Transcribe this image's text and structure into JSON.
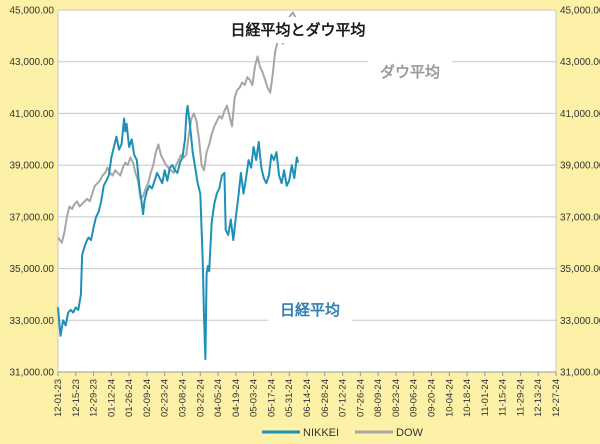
{
  "chart_data": {
    "type": "line",
    "title": "日経平均とダウ平均",
    "annotations": {
      "dow_label": "ダウ平均",
      "nikkei_label": "日経平均"
    },
    "x_ticks": [
      "12-01-23",
      "12-15-23",
      "12-29-23",
      "01-12-24",
      "01-26-24",
      "02-09-24",
      "02-23-24",
      "03-08-24",
      "03-22-24",
      "04-05-24",
      "04-19-24",
      "05-03-24",
      "05-17-24",
      "05-31-24",
      "06-14-24",
      "06-28-24",
      "07-12-24",
      "07-26-24",
      "08-09-24",
      "08-23-24",
      "09-06-24",
      "09-20-24",
      "10-04-24",
      "10-18-24",
      "11-01-24",
      "11-15-24",
      "11-29-24",
      "12-13-24",
      "12-27-24"
    ],
    "ylim": [
      31000,
      45000
    ],
    "y_ticks": [
      "31,000.00",
      "33,000.00",
      "35,000.00",
      "37,000.00",
      "39,000.00",
      "41,000.00",
      "43,000.00",
      "45,000.00"
    ],
    "grid": true,
    "legend_position": "bottom",
    "colors": {
      "background": "#fdf1a8",
      "plot": "#ffffff",
      "grid": "#c8c8c8",
      "nikkei": "#1e90b8",
      "dow": "#a6a6a6",
      "title_text": "#1a1a1a",
      "nikkei_label": "#2f7fb5",
      "dow_label": "#9a9a9a",
      "axis_text": "#333333"
    },
    "series": [
      {
        "name": "NIKKEI",
        "points": [
          [
            0,
            33500
          ],
          [
            2,
            32400
          ],
          [
            4,
            33000
          ],
          [
            6,
            32800
          ],
          [
            8,
            33300
          ],
          [
            10,
            33400
          ],
          [
            12,
            33300
          ],
          [
            14,
            33500
          ],
          [
            16,
            33400
          ],
          [
            18,
            34000
          ],
          [
            19,
            35500
          ],
          [
            20,
            35700
          ],
          [
            22,
            36000
          ],
          [
            24,
            36200
          ],
          [
            26,
            36100
          ],
          [
            28,
            36600
          ],
          [
            30,
            37000
          ],
          [
            32,
            37200
          ],
          [
            34,
            37600
          ],
          [
            36,
            38200
          ],
          [
            38,
            38400
          ],
          [
            40,
            38600
          ],
          [
            42,
            39300
          ],
          [
            44,
            39700
          ],
          [
            46,
            40100
          ],
          [
            48,
            39600
          ],
          [
            50,
            39800
          ],
          [
            52,
            40800
          ],
          [
            53,
            40300
          ],
          [
            54,
            40600
          ],
          [
            56,
            39700
          ],
          [
            58,
            40000
          ],
          [
            60,
            39400
          ],
          [
            62,
            39200
          ],
          [
            64,
            38200
          ],
          [
            66,
            37500
          ],
          [
            67,
            37100
          ],
          [
            68,
            37600
          ],
          [
            70,
            38000
          ],
          [
            72,
            38200
          ],
          [
            74,
            38100
          ],
          [
            76,
            38400
          ],
          [
            78,
            38700
          ],
          [
            80,
            38500
          ],
          [
            82,
            38300
          ],
          [
            84,
            38800
          ],
          [
            86,
            38400
          ],
          [
            88,
            38900
          ],
          [
            90,
            39000
          ],
          [
            92,
            38800
          ],
          [
            94,
            38700
          ],
          [
            96,
            39100
          ],
          [
            98,
            39300
          ],
          [
            100,
            40000
          ],
          [
            101,
            40900
          ],
          [
            102,
            41300
          ],
          [
            104,
            40500
          ],
          [
            106,
            39500
          ],
          [
            108,
            38900
          ],
          [
            110,
            38300
          ],
          [
            112,
            37900
          ],
          [
            113,
            36500
          ],
          [
            114,
            35200
          ],
          [
            115,
            33000
          ],
          [
            116,
            31500
          ],
          [
            117,
            34800
          ],
          [
            118,
            35100
          ],
          [
            119,
            34900
          ],
          [
            121,
            36800
          ],
          [
            123,
            37500
          ],
          [
            125,
            37900
          ],
          [
            127,
            38100
          ],
          [
            129,
            38600
          ],
          [
            131,
            38700
          ],
          [
            132,
            36500
          ],
          [
            134,
            36300
          ],
          [
            136,
            36900
          ],
          [
            138,
            36100
          ],
          [
            140,
            37000
          ],
          [
            142,
            37800
          ],
          [
            144,
            38700
          ],
          [
            146,
            37900
          ],
          [
            148,
            38500
          ],
          [
            150,
            39200
          ],
          [
            152,
            38900
          ],
          [
            154,
            39700
          ],
          [
            156,
            39200
          ],
          [
            158,
            39900
          ],
          [
            160,
            38900
          ],
          [
            162,
            38500
          ],
          [
            164,
            38300
          ],
          [
            166,
            38600
          ],
          [
            168,
            39400
          ],
          [
            170,
            39200
          ],
          [
            172,
            39500
          ],
          [
            174,
            38600
          ],
          [
            176,
            38300
          ],
          [
            178,
            38800
          ],
          [
            180,
            38200
          ],
          [
            182,
            38400
          ],
          [
            184,
            39000
          ],
          [
            186,
            38500
          ],
          [
            188,
            39300
          ],
          [
            189,
            39100
          ]
        ]
      },
      {
        "name": "DOW",
        "points": [
          [
            0,
            36200
          ],
          [
            3,
            36000
          ],
          [
            5,
            36400
          ],
          [
            7,
            37000
          ],
          [
            9,
            37400
          ],
          [
            11,
            37300
          ],
          [
            13,
            37500
          ],
          [
            15,
            37600
          ],
          [
            17,
            37400
          ],
          [
            19,
            37500
          ],
          [
            21,
            37600
          ],
          [
            23,
            37700
          ],
          [
            25,
            37600
          ],
          [
            27,
            37900
          ],
          [
            29,
            38200
          ],
          [
            31,
            38300
          ],
          [
            33,
            38400
          ],
          [
            35,
            38600
          ],
          [
            37,
            38700
          ],
          [
            39,
            38900
          ],
          [
            41,
            38700
          ],
          [
            43,
            38600
          ],
          [
            45,
            38800
          ],
          [
            47,
            38700
          ],
          [
            49,
            38600
          ],
          [
            51,
            38900
          ],
          [
            53,
            39100
          ],
          [
            55,
            39000
          ],
          [
            57,
            39300
          ],
          [
            59,
            39100
          ],
          [
            61,
            38700
          ],
          [
            63,
            38400
          ],
          [
            65,
            37700
          ],
          [
            67,
            37800
          ],
          [
            69,
            38100
          ],
          [
            71,
            38300
          ],
          [
            73,
            38700
          ],
          [
            75,
            39000
          ],
          [
            77,
            39500
          ],
          [
            79,
            39800
          ],
          [
            81,
            39400
          ],
          [
            83,
            39200
          ],
          [
            85,
            39000
          ],
          [
            87,
            38900
          ],
          [
            89,
            38800
          ],
          [
            91,
            38700
          ],
          [
            93,
            39000
          ],
          [
            95,
            39200
          ],
          [
            97,
            39400
          ],
          [
            99,
            39300
          ],
          [
            101,
            39400
          ],
          [
            103,
            40200
          ],
          [
            105,
            40800
          ],
          [
            107,
            41000
          ],
          [
            109,
            40700
          ],
          [
            111,
            40000
          ],
          [
            113,
            39000
          ],
          [
            115,
            38800
          ],
          [
            117,
            39500
          ],
          [
            119,
            39800
          ],
          [
            121,
            40200
          ],
          [
            123,
            40500
          ],
          [
            125,
            40700
          ],
          [
            127,
            40900
          ],
          [
            129,
            40800
          ],
          [
            131,
            41100
          ],
          [
            133,
            41300
          ],
          [
            135,
            40900
          ],
          [
            137,
            40500
          ],
          [
            139,
            41600
          ],
          [
            141,
            41900
          ],
          [
            143,
            42000
          ],
          [
            145,
            42200
          ],
          [
            147,
            42100
          ],
          [
            149,
            42400
          ],
          [
            151,
            42300
          ],
          [
            153,
            42100
          ],
          [
            155,
            42800
          ],
          [
            157,
            43200
          ],
          [
            159,
            42800
          ],
          [
            161,
            42600
          ],
          [
            163,
            42300
          ],
          [
            165,
            42000
          ],
          [
            167,
            41800
          ],
          [
            169,
            42500
          ],
          [
            171,
            43400
          ],
          [
            173,
            43800
          ],
          [
            175,
            44000
          ],
          [
            177,
            43700
          ],
          [
            179,
            44200
          ],
          [
            181,
            44600
          ],
          [
            183,
            44800
          ],
          [
            185,
            44900
          ],
          [
            187,
            44700
          ],
          [
            189,
            44600
          ]
        ]
      }
    ]
  }
}
